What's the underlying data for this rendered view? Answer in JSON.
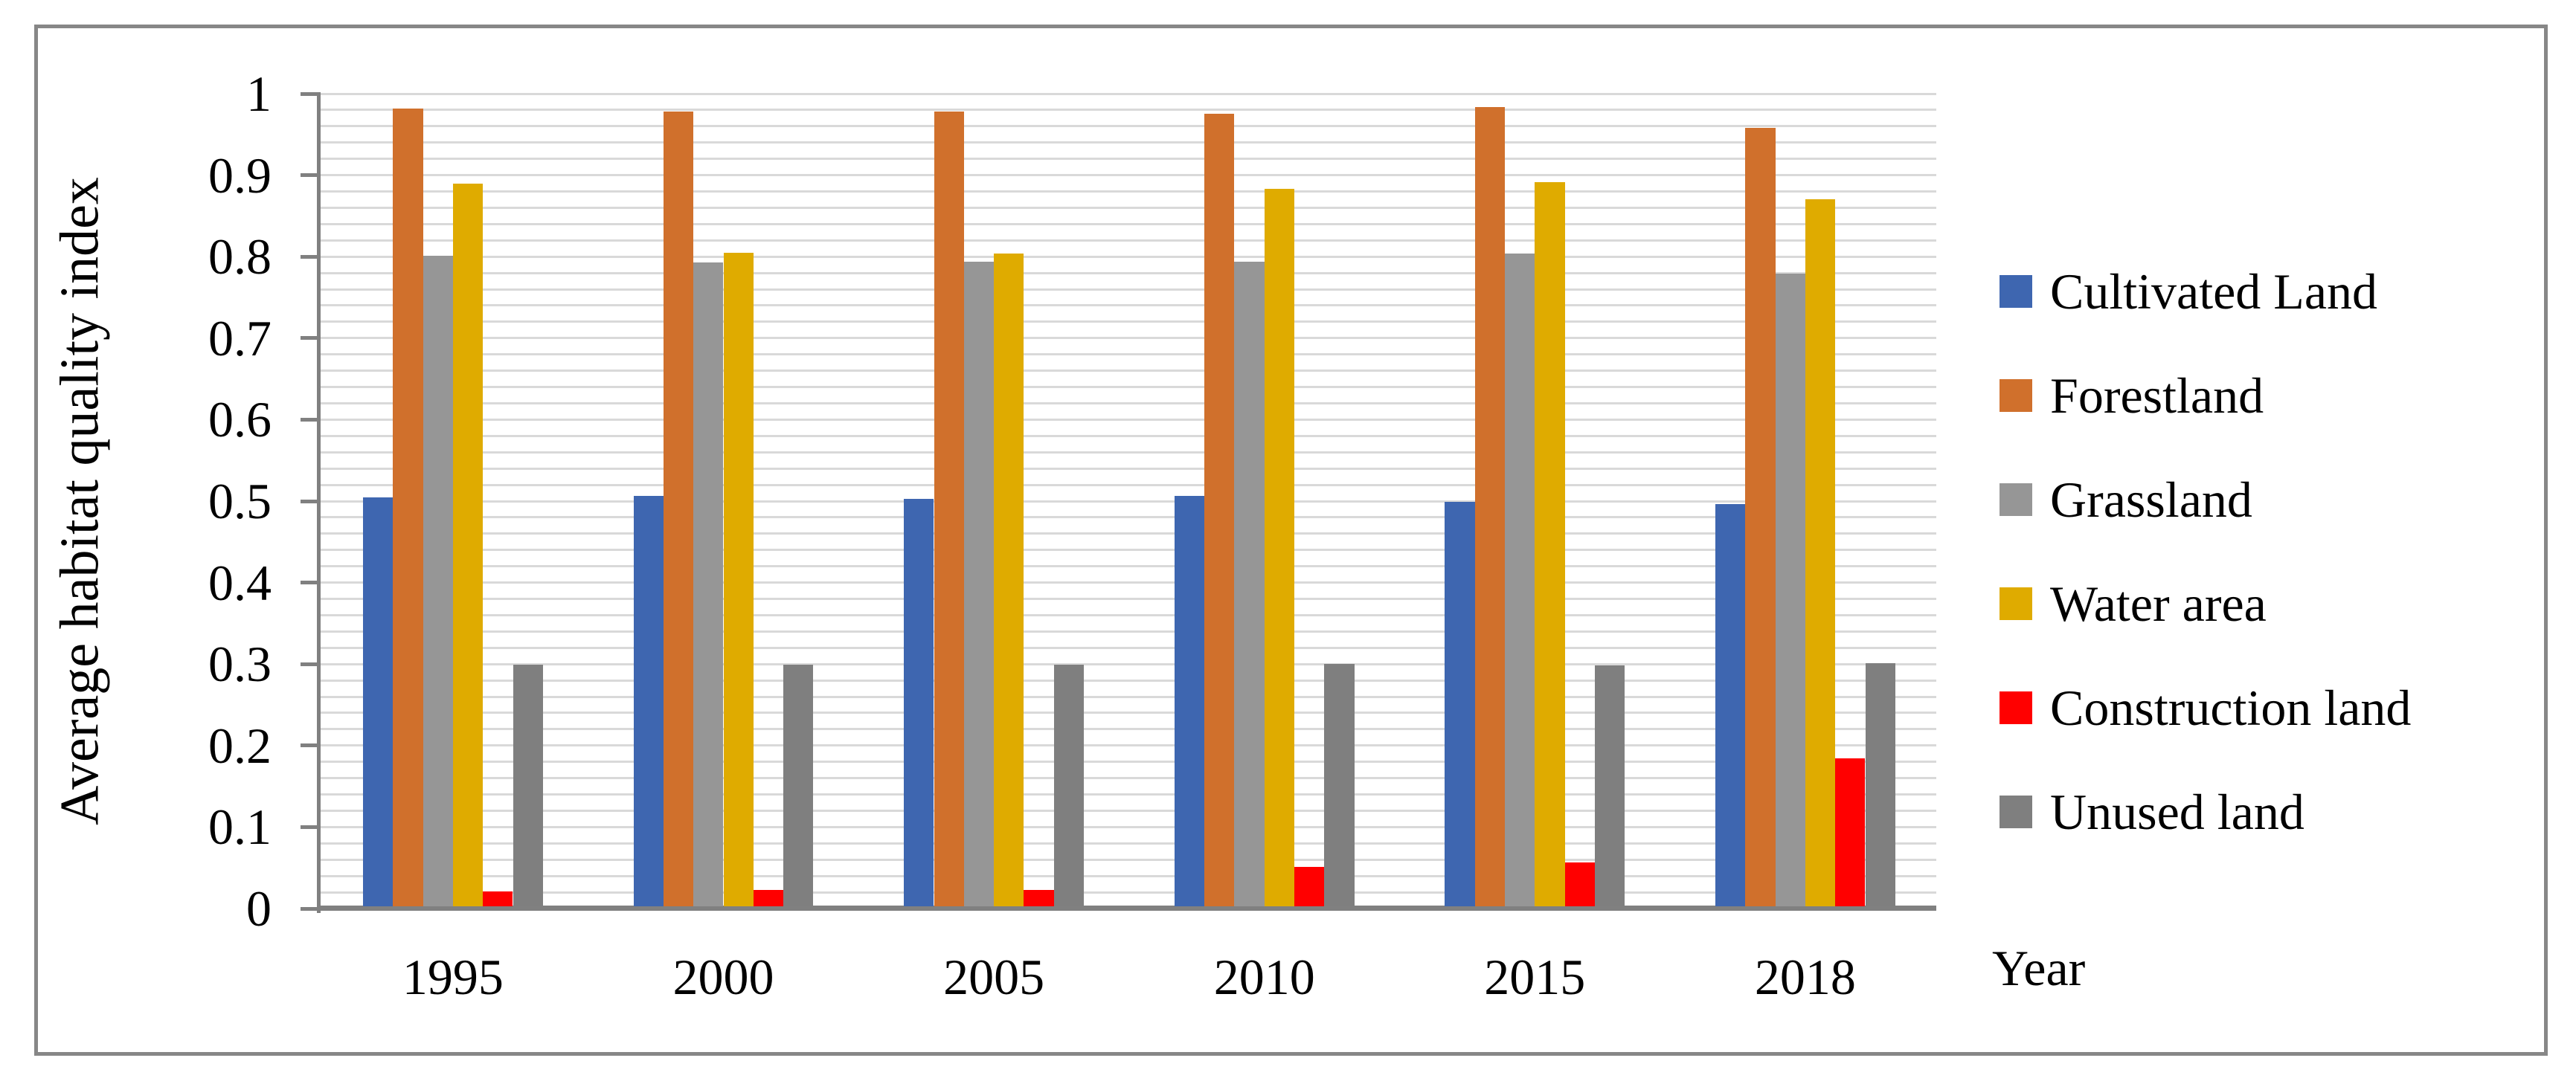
{
  "figure": {
    "border_color": "#878787",
    "background_color": "#FFFFFF"
  },
  "chart_data": {
    "type": "bar",
    "title": "",
    "ylabel": "Average habitat quality index",
    "xlabel": "Year",
    "ylim": [
      0,
      1
    ],
    "y_major_tick_step": 0.1,
    "y_minor_grid_step": 0.02,
    "y_tick_labels": [
      "0",
      "0.1",
      "0.2",
      "0.3",
      "0.4",
      "0.5",
      "0.6",
      "0.7",
      "0.8",
      "0.9",
      "1"
    ],
    "grid": "minor-horizontal-on",
    "legend_position": "right",
    "categories": [
      "1995",
      "2000",
      "2005",
      "2010",
      "2015",
      "2018"
    ],
    "series": [
      {
        "name": "Cultivated Land",
        "color": "#3E66B0",
        "values": [
          0.505,
          0.506,
          0.503,
          0.506,
          0.499,
          0.496
        ]
      },
      {
        "name": "Forestland",
        "color": "#D0702C",
        "values": [
          0.982,
          0.978,
          0.978,
          0.975,
          0.984,
          0.958
        ]
      },
      {
        "name": "Grassland",
        "color": "#969696",
        "values": [
          0.801,
          0.793,
          0.794,
          0.794,
          0.804,
          0.779
        ]
      },
      {
        "name": "Water area",
        "color": "#DFAB00",
        "values": [
          0.89,
          0.805,
          0.804,
          0.883,
          0.891,
          0.87
        ]
      },
      {
        "name": "Construction land",
        "color": "#FF0000",
        "values": [
          0.021,
          0.023,
          0.023,
          0.051,
          0.057,
          0.184
        ]
      },
      {
        "name": "Unused land",
        "color": "#7F7F7F",
        "values": [
          0.299,
          0.299,
          0.299,
          0.3,
          0.298,
          0.301
        ]
      }
    ],
    "gridline_color": "#D9D9D9",
    "axis_color": "#808080"
  }
}
